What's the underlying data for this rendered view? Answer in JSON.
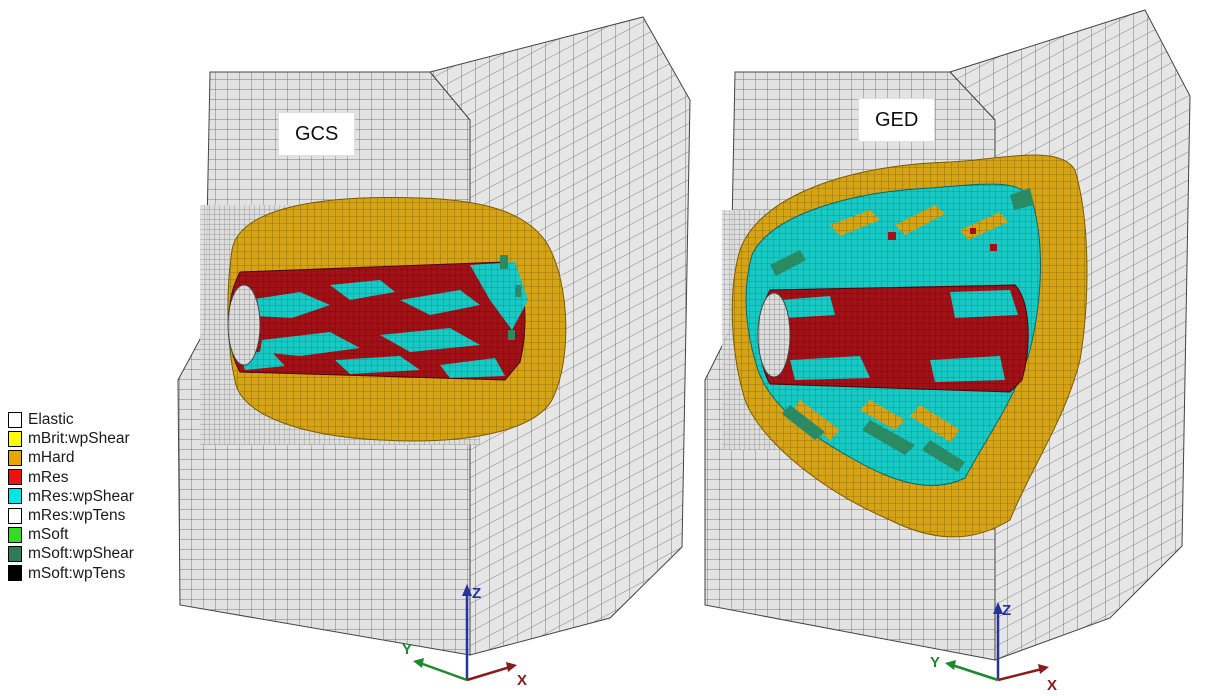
{
  "models": [
    {
      "label": "GCS"
    },
    {
      "label": "GED"
    }
  ],
  "legend": {
    "items": [
      {
        "label": "Elastic",
        "color": "#ffffff"
      },
      {
        "label": "mBrit:wpShear",
        "color": "#ffff00"
      },
      {
        "label": "mHard",
        "color": "#e6a800"
      },
      {
        "label": "mRes",
        "color": "#ee1111"
      },
      {
        "label": "mRes:wpShear",
        "color": "#00e6e6"
      },
      {
        "label": "mRes:wpTens",
        "color": "#ffffff"
      },
      {
        "label": "mSoft",
        "color": "#33dd22"
      },
      {
        "label": "mSoft:wpShear",
        "color": "#2e7d52"
      },
      {
        "label": "mSoft:wpTens",
        "color": "#000000"
      }
    ]
  },
  "axes": {
    "z": "Z",
    "y": "Y",
    "x": "X"
  },
  "colors": {
    "mesh_face": "#e2e2e2",
    "mesh_line": "#555555",
    "hard_zone": "#d4a316",
    "res_zone": "#9e1218",
    "shear_zone": "#1bc9c4",
    "soft_shear_zone": "#2a8a63",
    "axis_z": "#2433a0",
    "axis_y": "#1a8a2a",
    "axis_x": "#8a1b1b"
  }
}
